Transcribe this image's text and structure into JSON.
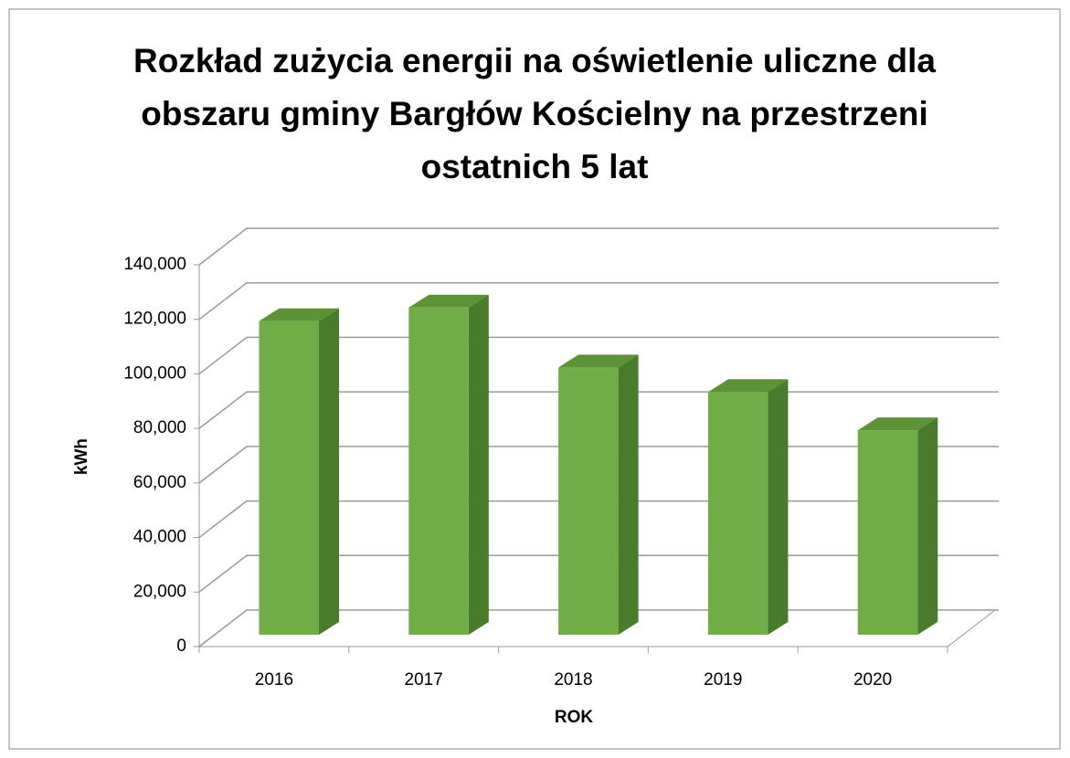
{
  "chart_data": {
    "type": "bar3d",
    "title": "Rozkład zużycia energii na oświetlenie uliczne dla obszaru gminy Bargłów Kościelny na przestrzeni ostatnich 5 lat",
    "x_label": "ROK",
    "y_label": "kWh",
    "categories": [
      "2016",
      "2017",
      "2018",
      "2019",
      "2020"
    ],
    "values": [
      115000,
      120000,
      98000,
      89000,
      75000
    ],
    "color": "#70ad47",
    "ylim": [
      0,
      140000
    ],
    "yticks": [
      0,
      {
        "value": 20000,
        "label": "20,000"
      },
      {
        "value": 40000,
        "label": "40,000"
      },
      {
        "value": 60000,
        "label": "60,000"
      },
      {
        "value": 80000,
        "label": "80,000"
      },
      {
        "value": 100000,
        "label": "100,000"
      },
      {
        "value": 120000,
        "label": "120,000"
      },
      {
        "value": 140000,
        "label": "140,000"
      }
    ],
    "grid": true
  }
}
